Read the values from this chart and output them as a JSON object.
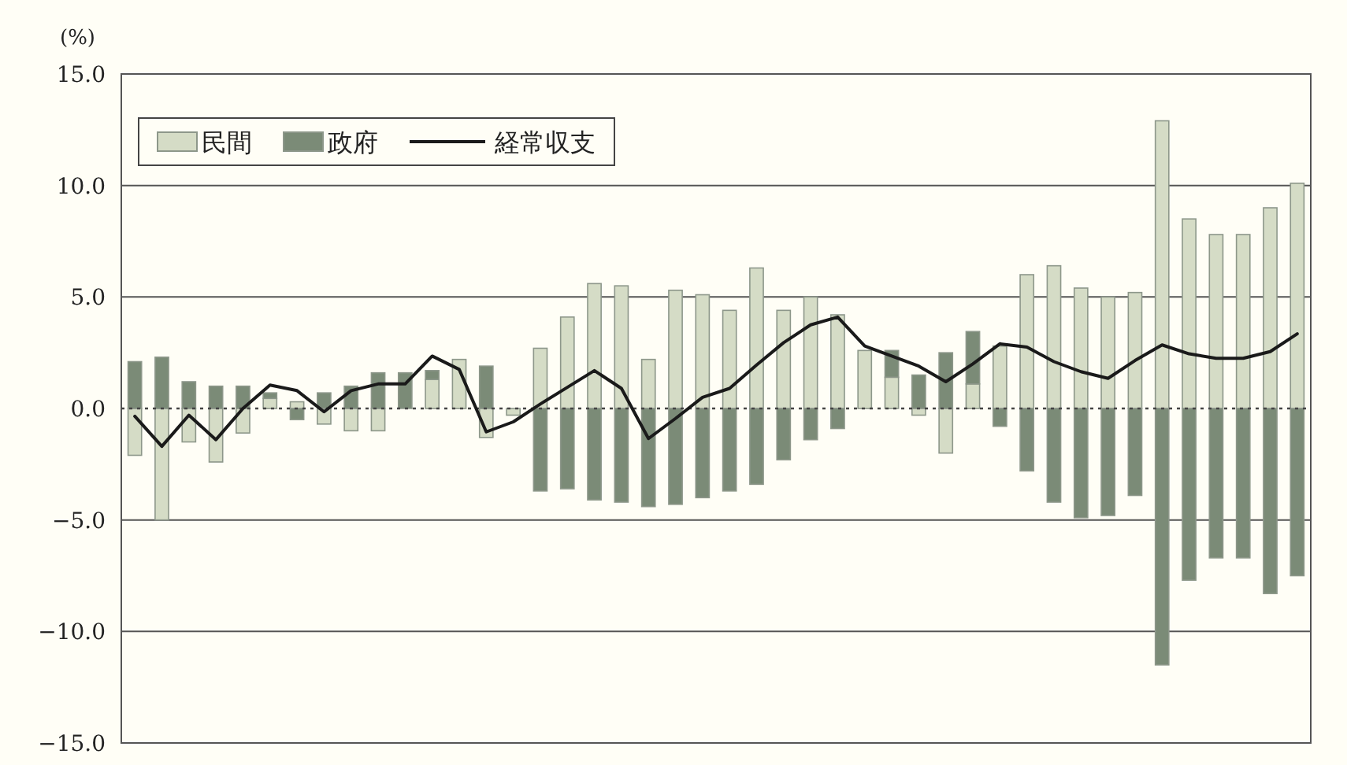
{
  "chart_data": {
    "type": "bar",
    "ylabel": "(%)",
    "grid": "y",
    "legend": "top left",
    "tick_labels": "y",
    "categories": [
      null,
      null,
      null,
      null,
      null,
      null,
      null,
      null,
      null,
      null,
      null,
      null,
      null,
      null,
      null,
      null,
      null,
      null,
      null,
      null,
      null,
      null,
      null,
      null,
      null,
      null,
      null,
      null,
      null,
      null,
      null,
      null,
      null,
      null,
      null,
      null,
      null,
      null,
      null,
      null,
      null,
      null,
      null,
      null
    ],
    "ylim": [
      -15,
      15
    ],
    "stacked": true,
    "ref_lines": [
      {
        "axis": "y",
        "value": 0,
        "label": null,
        "color": "#444444",
        "line_style": "dotted"
      }
    ],
    "yticks": [
      {
        "value": -15,
        "label": "−15.0"
      },
      {
        "value": -10,
        "label": "−10.0"
      },
      {
        "value": -5,
        "label": "−5.0"
      },
      {
        "value": 0,
        "label": "0.0"
      },
      {
        "value": 5,
        "label": "5.0"
      },
      {
        "value": 10,
        "label": "10.0"
      },
      {
        "value": 15,
        "label": "15.0"
      }
    ],
    "series": [
      {
        "name": "民間",
        "type": "bar",
        "color": "#d5dcc6",
        "values": [
          -2.1,
          -5.0,
          -1.5,
          -2.4,
          -1.1,
          0.45,
          0.3,
          -0.7,
          -1.0,
          -1.0,
          null,
          1.3,
          2.2,
          -1.3,
          -0.3,
          2.7,
          4.1,
          5.6,
          5.5,
          2.2,
          5.3,
          5.1,
          4.4,
          6.3,
          4.4,
          5.0,
          4.2,
          2.6,
          1.4,
          -0.3,
          -2.0,
          1.1,
          2.8,
          6.0,
          6.4,
          5.4,
          5.0,
          5.2,
          12.9,
          8.5,
          7.8,
          7.8,
          9.0,
          10.1
        ]
      },
      {
        "name": "政府",
        "type": "bar",
        "color": "#7b8b77",
        "values": [
          2.1,
          2.3,
          1.2,
          1.0,
          1.0,
          0.25,
          -0.5,
          0.7,
          1.0,
          1.6,
          1.6,
          0.4,
          null,
          1.9,
          null,
          -3.7,
          -3.6,
          -4.1,
          -4.2,
          -4.4,
          -4.3,
          -4.0,
          -3.7,
          -3.4,
          -2.3,
          -1.4,
          -0.9,
          null,
          1.2,
          1.5,
          2.5,
          2.35,
          -0.8,
          -2.8,
          -4.2,
          -4.9,
          -4.8,
          -3.9,
          -11.5,
          -7.7,
          -6.7,
          -6.7,
          -8.3,
          -7.5
        ]
      },
      {
        "name": "経常収支",
        "type": "line",
        "color": "#1a1a1a",
        "values": [
          -0.35,
          -1.7,
          -0.3,
          -1.4,
          0.0,
          1.05,
          0.8,
          -0.15,
          0.8,
          1.1,
          1.1,
          2.35,
          1.75,
          -1.05,
          -0.6,
          0.2,
          0.95,
          1.7,
          0.9,
          -1.35,
          -0.45,
          0.5,
          0.9,
          1.95,
          2.95,
          3.75,
          4.1,
          2.8,
          2.35,
          1.9,
          1.2,
          2.0,
          2.9,
          2.75,
          2.1,
          1.65,
          1.35,
          2.15,
          2.85,
          2.45,
          2.25,
          2.25,
          2.55,
          3.35
        ]
      }
    ]
  }
}
